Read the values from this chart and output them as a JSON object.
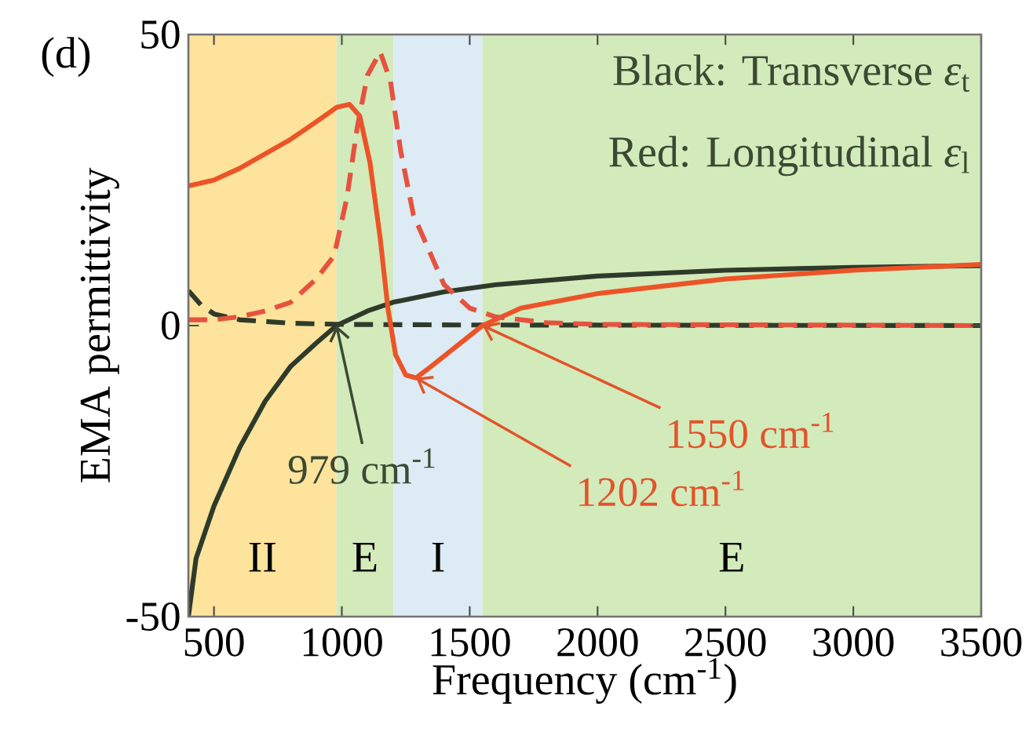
{
  "chart_data": {
    "type": "line",
    "xlabel": "Frequency (cm$^{-1}$)",
    "ylabel": "EMA permittivity",
    "xlim": [
      400,
      3500
    ],
    "ylim": [
      -50,
      50
    ],
    "xticks": [
      500,
      1000,
      1500,
      2000,
      2500,
      3000,
      3500
    ],
    "yticks": [
      -50,
      0,
      50
    ],
    "series": [
      {
        "color": "#2f3b2a",
        "line_style": "solid",
        "x": [
          400,
          430,
          500,
          600,
          700,
          800,
          900,
          979,
          1100,
          1200,
          1400,
          1600,
          2000,
          2500,
          3000,
          3500
        ],
        "values": [
          -50,
          -40,
          -31,
          -21,
          -13,
          -7,
          -3,
          0,
          2.5,
          4,
          5.8,
          7,
          8.5,
          9.5,
          10,
          10.3
        ]
      },
      {
        "color": "#2f3b2a",
        "line_style": "dashed",
        "x": [
          400,
          450,
          500,
          600,
          800,
          1000,
          1500,
          3500
        ],
        "values": [
          6,
          3.5,
          2,
          1,
          0.4,
          0.2,
          0.1,
          0
        ]
      },
      {
        "color": "#ec5428",
        "line_style": "solid",
        "x": [
          400,
          500,
          600,
          700,
          800,
          900,
          980,
          1030,
          1070,
          1110,
          1150,
          1180,
          1210,
          1250,
          1290,
          1350,
          1450,
          1550,
          1700,
          2000,
          2500,
          3000,
          3500
        ],
        "values": [
          24,
          25,
          27,
          29.5,
          32,
          35,
          37.5,
          38,
          36,
          28,
          15,
          3,
          -5,
          -8.5,
          -9,
          -7,
          -3.5,
          0,
          3,
          5.5,
          8,
          9.5,
          10.5
        ]
      },
      {
        "color": "#e5533f",
        "line_style": "dashed",
        "x": [
          400,
          500,
          600,
          700,
          800,
          900,
          970,
          1020,
          1060,
          1100,
          1150,
          1190,
          1230,
          1280,
          1400,
          1500,
          1600,
          1800,
          2000,
          3500
        ],
        "values": [
          1,
          1,
          1.5,
          2.5,
          4,
          8,
          12,
          22,
          34,
          43,
          47,
          42,
          30,
          19,
          7,
          3,
          1.5,
          0.5,
          0.2,
          0
        ]
      }
    ],
    "bands": [
      {
        "axis": "x",
        "from": 400,
        "to": 979,
        "label": "II",
        "color": "#fde39c"
      },
      {
        "axis": "x",
        "from": 979,
        "to": 1202,
        "label": "E",
        "color": "#d3eabb"
      },
      {
        "axis": "x",
        "from": 1202,
        "to": 1550,
        "label": "I",
        "color": "#dcebf4"
      },
      {
        "axis": "x",
        "from": 1550,
        "to": 3500,
        "label": "E",
        "color": "#d3eabb"
      }
    ],
    "annotations": [
      "(d)",
      "Black: Transverse *ε*$_{t}$",
      "Red: Longitudinal *ε*$_{l}$",
      {
        "text": "979 cm$^{-1}$",
        "x": 979,
        "y": 0
      },
      {
        "text": "1550 cm$^{-1}$",
        "x": 1550,
        "y": 0
      },
      {
        "text": "1202 cm$^{-1}$",
        "x": 1290,
        "y": -9
      }
    ]
  }
}
